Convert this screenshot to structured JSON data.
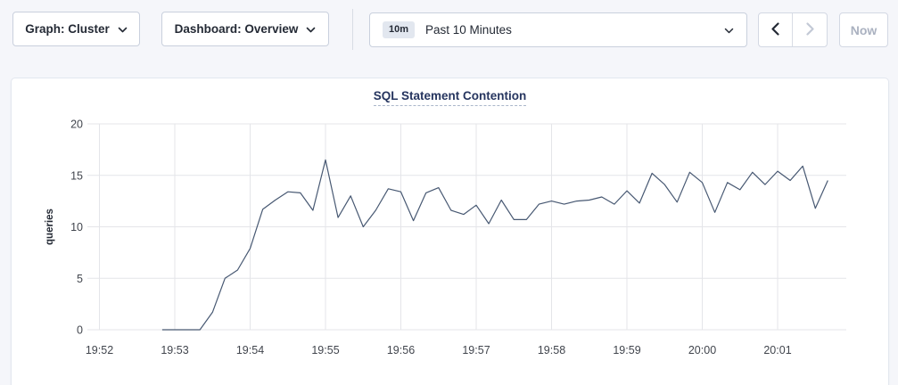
{
  "toolbar": {
    "graph_dropdown": {
      "label": "Graph: Cluster",
      "icon": "chevron-down"
    },
    "dashboard_dropdown": {
      "label": "Dashboard: Overview",
      "icon": "chevron-down"
    },
    "time_selector": {
      "badge": "10m",
      "label": "Past 10 Minutes",
      "icon": "chevron-down"
    },
    "prev_button": {
      "icon": "chevron-left",
      "enabled": true
    },
    "next_button": {
      "icon": "chevron-right",
      "enabled": false
    },
    "now_button": {
      "label": "Now",
      "enabled": false
    }
  },
  "chart_data": {
    "type": "line",
    "title": "SQL Statement Contention",
    "xlabel": "",
    "ylabel": "queries",
    "ylim": [
      0,
      20
    ],
    "yticks": [
      0,
      5,
      10,
      15,
      20
    ],
    "xticks": [
      "19:52",
      "19:53",
      "19:54",
      "19:55",
      "19:56",
      "19:57",
      "19:58",
      "19:59",
      "20:00",
      "20:01"
    ],
    "seconds_per_tick": 60,
    "grid": true,
    "legend": "none",
    "series": [
      {
        "name": "SQL Statement Contention",
        "unit": "queries",
        "start_offset_sec": 50,
        "interval_sec": 10,
        "values": [
          0,
          0,
          0,
          0,
          1.7,
          5,
          5.8,
          7.9,
          11.7,
          12.6,
          13.4,
          13.3,
          11.6,
          16.5,
          10.9,
          13,
          10,
          11.6,
          13.7,
          13.4,
          10.6,
          13.3,
          13.8,
          11.6,
          11.2,
          12.1,
          10.3,
          12.6,
          10.7,
          10.7,
          12.2,
          12.5,
          12.2,
          12.5,
          12.6,
          12.9,
          12.2,
          13.5,
          12.3,
          15.2,
          14.1,
          12.4,
          15.3,
          14.3,
          11.4,
          14.3,
          13.6,
          15.3,
          14.1,
          15.4,
          14.5,
          15.9,
          11.8,
          14.5
        ]
      }
    ],
    "colors": {
      "line": "#475872",
      "grid": "#e4e5e9",
      "tick_text": "#41454d",
      "axis_label_text": "#242a35",
      "title": "#26355f"
    }
  }
}
